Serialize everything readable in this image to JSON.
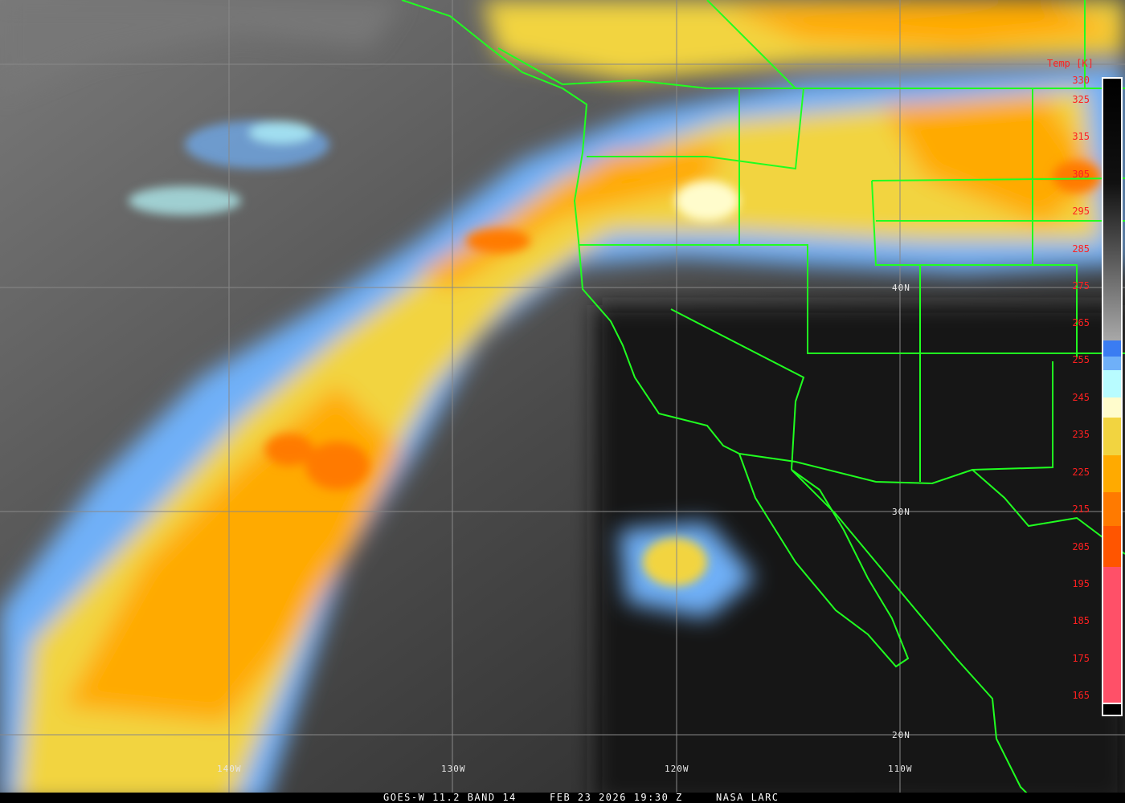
{
  "caption": {
    "satellite": "GOES-W 11.2 BAND 14",
    "datetime": "FEB 23 2026 19:30 Z",
    "credit": "NASA LARC"
  },
  "colorbar": {
    "title": "Temp [K]",
    "ticks": [
      "330",
      "325",
      "315",
      "305",
      "295",
      "285",
      "275",
      "265",
      "255",
      "245",
      "235",
      "225",
      "215",
      "205",
      "195",
      "185",
      "175",
      "165"
    ],
    "colors": {
      "warm_gray_top": "#000000",
      "warm_gray_bottom": "#a8a8a8",
      "blue": "#3a7cf2",
      "light_blue": "#6fb0f8",
      "cyan": "#b8fcff",
      "pale_yellow": "#fffccc",
      "yellow": "#f2d440",
      "orange": "#ffaa00",
      "dark_orange": "#ff7a00",
      "red_orange": "#ff5500",
      "pink": "#ff5068"
    }
  },
  "grid": {
    "lat_labels": [
      "40N",
      "30N",
      "20N"
    ],
    "lon_labels": [
      "140W",
      "130W",
      "120W",
      "110W"
    ]
  },
  "map_colors": {
    "borders": "#20ff20",
    "grid": "#888888"
  }
}
